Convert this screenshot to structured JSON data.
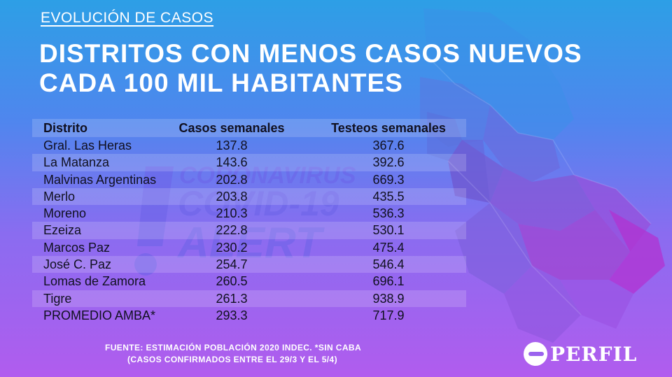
{
  "kicker": "EVOLUCIÓN DE CASOS",
  "title": "DISTRITOS CON MENOS CASOS NUEVOS CADA 100 MIL HABITANTES",
  "watermark": {
    "line1": "CORONAVIRUS",
    "line2": "COVID-19",
    "line3": "ALERT"
  },
  "chart_data": {
    "type": "table",
    "columns": [
      "Distrito",
      "Casos semanales",
      "Testeos semanales"
    ],
    "rows": [
      {
        "distrito": "Gral. Las Heras",
        "casos": "137.8",
        "testeos": "367.6"
      },
      {
        "distrito": "La Matanza",
        "casos": "143.6",
        "testeos": "392.6"
      },
      {
        "distrito": "Malvinas Argentinas",
        "casos": "202.8",
        "testeos": "669.3"
      },
      {
        "distrito": "Merlo",
        "casos": "203.8",
        "testeos": "435.5"
      },
      {
        "distrito": "Moreno",
        "casos": "210.3",
        "testeos": "536.3"
      },
      {
        "distrito": "Ezeiza",
        "casos": "222.8",
        "testeos": "530.1"
      },
      {
        "distrito": "Marcos Paz",
        "casos": "230.2",
        "testeos": "475.4"
      },
      {
        "distrito": "José C. Paz",
        "casos": "254.7",
        "testeos": "546.4"
      },
      {
        "distrito": "Lomas de Zamora",
        "casos": "260.5",
        "testeos": "696.1"
      },
      {
        "distrito": "Tigre",
        "casos": "261.3",
        "testeos": "938.9"
      },
      {
        "distrito": "PROMEDIO AMBA*",
        "casos": "293.3",
        "testeos": "717.9"
      }
    ]
  },
  "footnote": {
    "line1": "FUENTE: ESTIMACIÓN POBLACIÓN 2020 INDEC. *SIN CABA",
    "line2": "(CASOS CONFIRMADOS ENTRE EL 29/3 Y EL 5/4)"
  },
  "logo": "PERFIL"
}
